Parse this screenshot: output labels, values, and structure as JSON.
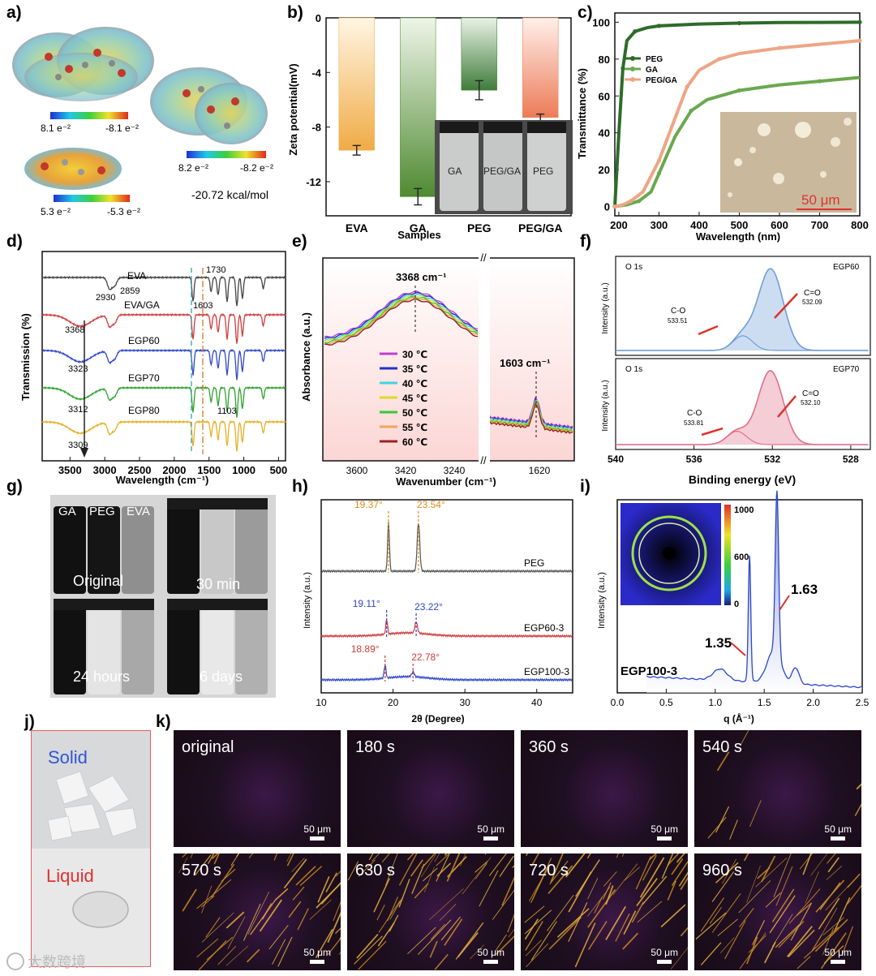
{
  "panel_labels": {
    "a": "a)",
    "b": "b)",
    "c": "c)",
    "d": "d)",
    "e": "e)",
    "f": "f)",
    "g": "g)",
    "h": "h)",
    "i": "i)",
    "j": "j)",
    "k": "k)"
  },
  "panel_a": {
    "scale1": {
      "min": "8.1 e⁻²",
      "max": "-8.1 e⁻²"
    },
    "scale2": {
      "min": "5.3 e⁻²",
      "max": "-5.3 e⁻²"
    },
    "scale3": {
      "min": "8.2 e⁻²",
      "max": "-8.2 e⁻²"
    },
    "energy": "-20.72 kcal/mol"
  },
  "panel_g": {
    "vials": [
      "GA",
      "PEG",
      "EVA"
    ],
    "times": [
      "Original",
      "30 min",
      "24 hours",
      "6 days"
    ]
  },
  "panel_j": {
    "solid": "Solid",
    "liquid": "Liquid",
    "watermark": "大数跨境"
  },
  "panel_k": {
    "times": [
      "original",
      "180 s",
      "360 s",
      "540 s",
      "570 s",
      "630 s",
      "720 s",
      "960 s"
    ],
    "scale": "50 μm",
    "crystal_density": [
      0,
      0,
      0,
      0.15,
      1,
      1,
      1,
      1
    ]
  },
  "chart_data": [
    {
      "id": "b",
      "type": "bar",
      "xlabel": "Samples",
      "ylabel": "Zeta potential(mV)",
      "categories": [
        "EVA",
        "GA",
        "PEG",
        "PEG/GA"
      ],
      "values": [
        -9.7,
        -13.1,
        -5.3,
        -7.3
      ],
      "errors": [
        0.35,
        0.6,
        0.7,
        0.25
      ],
      "colors": [
        "#f2b457",
        "#5e9a3c",
        "#4e8c4a",
        "#ee8867"
      ],
      "ylim": [
        -14.5,
        0
      ],
      "yticks": [
        0,
        -4,
        -8,
        -12
      ],
      "inset_labels": [
        "GA",
        "PEG/GA",
        "PEG"
      ]
    },
    {
      "id": "c",
      "type": "line",
      "xlabel": "Wavelength (nm)",
      "ylabel": "Transmittance (%)",
      "xlim": [
        190,
        800
      ],
      "ylim": [
        -5,
        105
      ],
      "xticks": [
        200,
        300,
        400,
        500,
        600,
        700,
        800
      ],
      "yticks": [
        0,
        20,
        40,
        60,
        80,
        100
      ],
      "series": [
        {
          "name": "PEG",
          "color": "#2e6b2a",
          "x": [
            190,
            200,
            210,
            220,
            240,
            270,
            300,
            400,
            500,
            600,
            800
          ],
          "y": [
            0,
            40,
            75,
            90,
            95,
            97,
            98,
            99,
            99.5,
            99.8,
            100
          ]
        },
        {
          "name": "GA",
          "color": "#6aa84f",
          "x": [
            190,
            220,
            250,
            280,
            300,
            340,
            380,
            420,
            500,
            600,
            700,
            800
          ],
          "y": [
            0,
            1,
            3,
            8,
            18,
            38,
            52,
            58,
            63,
            66,
            68,
            70
          ]
        },
        {
          "name": "PEG/GA",
          "color": "#eea585",
          "x": [
            190,
            210,
            230,
            260,
            300,
            340,
            370,
            400,
            450,
            500,
            600,
            700,
            800
          ],
          "y": [
            0,
            1,
            3,
            8,
            25,
            48,
            65,
            74,
            80,
            83,
            86,
            88,
            90
          ]
        }
      ],
      "inset_scale": "50 μm"
    },
    {
      "id": "d",
      "type": "line",
      "xlabel": "Wavelength (cm⁻¹)",
      "ylabel": "Transmission (%)",
      "xticks": [
        3500,
        3000,
        2500,
        2000,
        1500,
        1000,
        500
      ],
      "series_names": [
        "EVA",
        "EVA/GA",
        "EGP60",
        "EGP70",
        "EGP80"
      ],
      "colors": [
        "#444444",
        "#d13b3b",
        "#2f46c8",
        "#2fa12f",
        "#e6b022"
      ],
      "annotations": [
        "2930",
        "2859",
        "1730",
        "1603",
        "3368",
        "3323",
        "3312",
        "3309",
        "1103"
      ]
    },
    {
      "id": "e",
      "type": "line",
      "xlabel": "Wavenumber (cm⁻¹)",
      "ylabel": "Absorbance (a.u.)",
      "xticks": [
        "3600",
        "3420",
        "3240",
        "1620"
      ],
      "peaks": [
        "3368 cm⁻¹",
        "1603 cm⁻¹"
      ],
      "legend": [
        "30 ℃",
        "35 ℃",
        "40 ℃",
        "45 ℃",
        "50 ℃",
        "55 ℃",
        "60 ℃"
      ],
      "colors": [
        "#c03fd1",
        "#2430c8",
        "#3fd4e0",
        "#e0d82a",
        "#37c837",
        "#f0a65c",
        "#9b2222"
      ]
    },
    {
      "id": "f",
      "type": "line",
      "xlabel": "Binding energy (eV)",
      "ylabel": "Intensity (a.u.)",
      "xticks": [
        540,
        536,
        532,
        528
      ],
      "subplots": [
        {
          "tag": "O 1s",
          "name": "EGP60",
          "c_o": "C-O",
          "c_o_val": "533.51",
          "c_eq_o": "C=O",
          "c_eq_o_val": "532.09",
          "color": "#6f9fd8"
        },
        {
          "tag": "O 1s",
          "name": "EGP70",
          "c_o": "C-O",
          "c_o_val": "533.81",
          "c_eq_o": "C=O",
          "c_eq_o_val": "532.10",
          "color": "#e0708a"
        }
      ]
    },
    {
      "id": "h",
      "type": "line",
      "xlabel": "2θ (Degree)",
      "ylabel": "Intensity (a.u.)",
      "xlim": [
        10,
        45
      ],
      "xticks": [
        10,
        20,
        30,
        40
      ],
      "series": [
        {
          "name": "PEG",
          "color": "#555555",
          "peaks": [
            19.37,
            23.54
          ],
          "labels": [
            "19.37°",
            "23.54°"
          ],
          "label_color": "#e08a1e"
        },
        {
          "name": "EGP60-3",
          "color": "#d13b3b",
          "peaks": [
            19.11,
            23.22
          ],
          "labels": [
            "19.11°",
            "23.22°"
          ],
          "label_color": "#2f46c8"
        },
        {
          "name": "EGP100-3",
          "color": "#2f46c8",
          "peaks": [
            18.89,
            22.78
          ],
          "labels": [
            "18.89°",
            "22.78°"
          ],
          "label_color": "#d13b3b"
        }
      ]
    },
    {
      "id": "i",
      "type": "line",
      "xlabel": "q (Å⁻¹)",
      "ylabel": "Intensity (a.u.)",
      "xlim": [
        0,
        2.5
      ],
      "xticks": [
        "0.0",
        "0.5",
        "1.0",
        "1.5",
        "2.0",
        "2.5"
      ],
      "sample": "EGP100-3",
      "peaks": [
        "1.35",
        "1.63"
      ],
      "colorbar": [
        "1000",
        "600",
        "0"
      ]
    }
  ]
}
